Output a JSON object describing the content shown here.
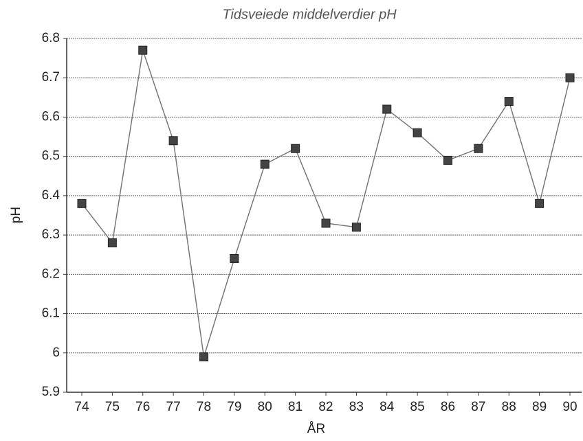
{
  "chart_data": {
    "type": "line",
    "title": "Tidsveiede middelverdier pH",
    "xlabel": "ÅR",
    "ylabel": "pH",
    "categories": [
      "74",
      "75",
      "76",
      "77",
      "78",
      "79",
      "80",
      "81",
      "82",
      "83",
      "84",
      "85",
      "86",
      "87",
      "88",
      "89",
      "90"
    ],
    "values": [
      6.38,
      6.28,
      6.77,
      6.54,
      5.99,
      6.24,
      6.48,
      6.52,
      6.33,
      6.32,
      6.62,
      6.56,
      6.49,
      6.52,
      6.64,
      6.38,
      6.7
    ],
    "color": "#777777",
    "marker_color": "#444444",
    "ylim": [
      5.9,
      6.8
    ],
    "yticks": [
      5.9,
      6,
      6.1,
      6.2,
      6.3,
      6.4,
      6.5,
      6.6,
      6.7,
      6.8
    ],
    "grid": true
  }
}
